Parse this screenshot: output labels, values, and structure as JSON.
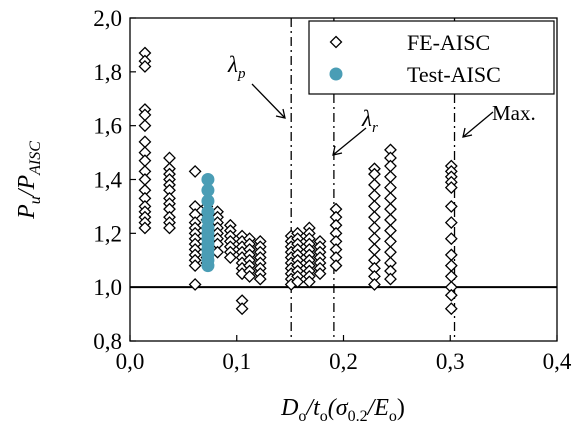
{
  "chart_data": {
    "type": "scatter",
    "xlim": [
      0,
      0.4
    ],
    "ylim": [
      0.8,
      2.0
    ],
    "x_ticks": [
      0,
      0.1,
      0.2,
      0.3,
      0.4
    ],
    "x_tick_labels": [
      "0,0",
      "0,1",
      "0,2",
      "0,3",
      "0,4"
    ],
    "y_ticks": [
      0.8,
      1.0,
      1.2,
      1.4,
      1.6,
      1.8,
      2.0
    ],
    "y_tick_labels": [
      "0,8",
      "1,0",
      "1,2",
      "1,4",
      "1,6",
      "1,8",
      "2,0"
    ],
    "xlabel": {
      "main": "D",
      "sub1": "o",
      "mid1": "/t",
      "sub2": "o",
      "mid2": "(σ",
      "sub3": "0.2",
      "mid3": "/E",
      "sub4": "o",
      "end": ")"
    },
    "ylabel": {
      "main": "P",
      "sub1": "u",
      "mid": "/P",
      "sub2": "AISC"
    },
    "reference_line": 1.0,
    "vertical_lines": [
      {
        "x": 0.151,
        "symbol": "λ",
        "sub": "p"
      },
      {
        "x": 0.191,
        "symbol": "λ",
        "sub": "r"
      },
      {
        "x": 0.304,
        "label": "Max."
      }
    ],
    "series": [
      {
        "name": "FE-AISC",
        "marker": "diamond",
        "color": "#000000",
        "groups": [
          {
            "x": 0.014,
            "y": [
              1.87,
              1.84,
              1.82,
              1.66,
              1.64,
              1.6,
              1.54,
              1.5,
              1.47,
              1.43,
              1.4,
              1.36,
              1.33,
              1.3,
              1.28,
              1.26,
              1.24,
              1.22
            ]
          },
          {
            "x": 0.037,
            "y": [
              1.48,
              1.44,
              1.42,
              1.4,
              1.38,
              1.36,
              1.33,
              1.31,
              1.29,
              1.26,
              1.24,
              1.22
            ]
          },
          {
            "x": 0.061,
            "y": [
              1.43,
              1.3,
              1.27,
              1.24,
              1.22,
              1.2,
              1.18,
              1.16,
              1.14,
              1.12,
              1.1,
              1.08,
              1.01
            ]
          },
          {
            "x": 0.072,
            "y": [
              1.3,
              1.27,
              1.25,
              1.22,
              1.2,
              1.18,
              1.16,
              1.14,
              1.11,
              1.09
            ]
          },
          {
            "x": 0.082,
            "y": [
              1.28,
              1.26,
              1.24,
              1.22,
              1.2,
              1.18,
              1.16,
              1.13
            ]
          },
          {
            "x": 0.094,
            "y": [
              1.23,
              1.21,
              1.19,
              1.17,
              1.15,
              1.13,
              1.11
            ]
          },
          {
            "x": 0.105,
            "y": [
              1.19,
              1.17,
              1.15,
              1.13,
              1.11,
              1.09,
              1.07,
              1.05,
              0.95,
              0.92
            ]
          },
          {
            "x": 0.112,
            "y": [
              1.18,
              1.16,
              1.14,
              1.12,
              1.1,
              1.08,
              1.06,
              1.04
            ]
          },
          {
            "x": 0.122,
            "y": [
              1.17,
              1.15,
              1.13,
              1.11,
              1.09,
              1.07,
              1.05,
              1.03
            ]
          },
          {
            "x": 0.151,
            "y": [
              1.19,
              1.17,
              1.15,
              1.13,
              1.11,
              1.09,
              1.07,
              1.05,
              1.03,
              1.01
            ]
          },
          {
            "x": 0.157,
            "y": [
              1.2,
              1.18,
              1.16,
              1.14,
              1.12,
              1.1,
              1.08,
              1.06,
              1.04,
              1.02
            ]
          },
          {
            "x": 0.168,
            "y": [
              1.22,
              1.2,
              1.18,
              1.16,
              1.14,
              1.12,
              1.1,
              1.08,
              1.06,
              1.04,
              1.02
            ]
          },
          {
            "x": 0.178,
            "y": [
              1.17,
              1.15,
              1.13,
              1.11,
              1.09,
              1.07,
              1.05
            ]
          },
          {
            "x": 0.193,
            "y": [
              1.29,
              1.26,
              1.23,
              1.2,
              1.17,
              1.14,
              1.11,
              1.08
            ]
          },
          {
            "x": 0.229,
            "y": [
              1.44,
              1.42,
              1.38,
              1.34,
              1.3,
              1.26,
              1.22,
              1.18,
              1.14,
              1.1,
              1.07,
              1.04,
              1.01
            ]
          },
          {
            "x": 0.244,
            "y": [
              1.51,
              1.48,
              1.45,
              1.41,
              1.37,
              1.33,
              1.29,
              1.25,
              1.21,
              1.17,
              1.13,
              1.09,
              1.06,
              1.03
            ]
          },
          {
            "x": 0.301,
            "y": [
              1.45,
              1.43,
              1.41,
              1.39,
              1.37,
              1.3,
              1.24,
              1.18,
              1.12,
              1.08,
              1.04,
              1.0,
              0.97,
              0.92
            ]
          }
        ]
      },
      {
        "name": "Test-AISC",
        "marker": "circle",
        "color": "#4A9DB5",
        "groups": [
          {
            "x": 0.073,
            "y": [
              1.4,
              1.36,
              1.32,
              1.28,
              1.25,
              1.22,
              1.2,
              1.18,
              1.16,
              1.14,
              1.12,
              1.1,
              1.08
            ]
          }
        ]
      }
    ]
  }
}
